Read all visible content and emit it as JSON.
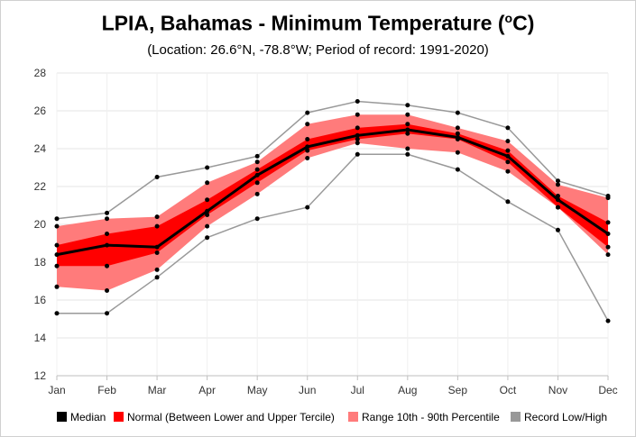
{
  "chart_data": {
    "type": "area",
    "title_prefix": "LPIA, Bahamas - Minimum Temperature (",
    "title_unit_sup": "o",
    "title_suffix": "C)",
    "subtitle": "(Location: 26.6°N, -78.8°W; Period of record: 1991-2020)",
    "categories": [
      "Jan",
      "Feb",
      "Mar",
      "Apr",
      "May",
      "Jun",
      "Jul",
      "Aug",
      "Sep",
      "Oct",
      "Nov",
      "Dec"
    ],
    "ylim": [
      12,
      28
    ],
    "yticks": [
      12,
      14,
      16,
      18,
      20,
      22,
      24,
      26,
      28
    ],
    "grid": true,
    "legend_placement": "bottom",
    "colors": {
      "median": "#000000",
      "tercile": "#ff0000",
      "percentile": "#ff7b7b",
      "record": "#999999"
    },
    "series": [
      {
        "name": "Median",
        "values": [
          18.4,
          18.9,
          18.8,
          20.7,
          22.6,
          24.1,
          24.7,
          25.0,
          24.6,
          23.6,
          21.3,
          19.5
        ]
      },
      {
        "name": "Normal (Between Lower and Upper Tercile)",
        "lower": [
          17.8,
          17.8,
          18.5,
          20.5,
          22.2,
          23.9,
          24.5,
          24.8,
          24.5,
          23.3,
          20.9,
          18.8
        ],
        "upper": [
          18.9,
          19.5,
          19.9,
          21.3,
          22.9,
          24.5,
          25.1,
          25.3,
          24.8,
          23.9,
          21.5,
          20.1
        ]
      },
      {
        "name": "Range 10th - 90th Percentile",
        "lower": [
          16.7,
          16.5,
          17.6,
          19.9,
          21.6,
          23.5,
          24.3,
          24.0,
          23.8,
          22.8,
          20.9,
          18.4
        ],
        "upper": [
          19.9,
          20.3,
          20.4,
          22.2,
          23.3,
          25.3,
          25.8,
          25.8,
          25.1,
          24.4,
          22.1,
          21.4
        ]
      },
      {
        "name": "Record Low/High",
        "low": [
          15.3,
          15.3,
          17.2,
          19.3,
          20.3,
          20.9,
          23.7,
          23.7,
          22.9,
          21.2,
          19.7,
          14.9
        ],
        "high": [
          20.3,
          20.6,
          22.5,
          23.0,
          23.6,
          25.9,
          26.5,
          26.3,
          25.9,
          25.1,
          22.3,
          21.5
        ]
      }
    ]
  }
}
